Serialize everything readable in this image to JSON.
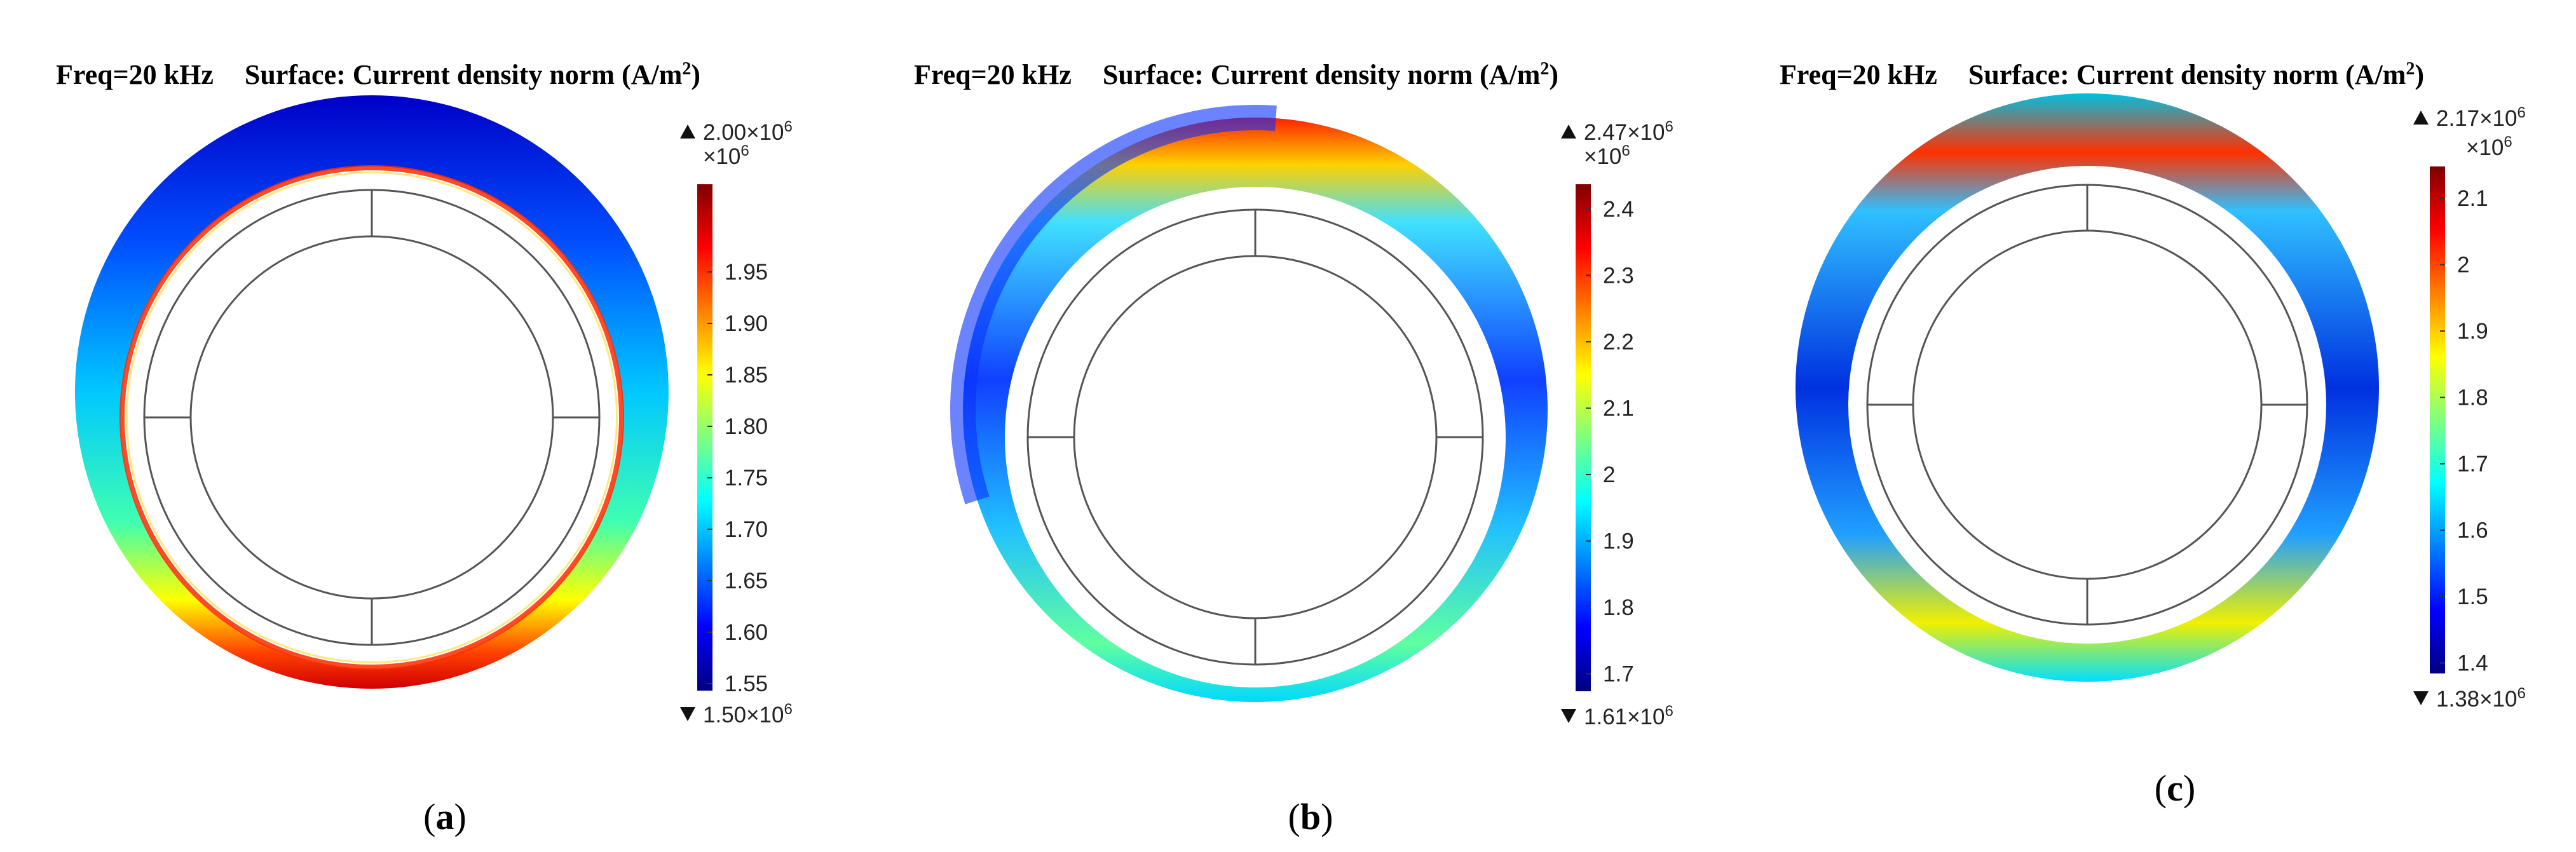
{
  "panels": [
    {
      "id": "a",
      "title_freq": "Freq=20 kHz",
      "title_surface": "Surface: Current density norm (A/m",
      "title_unit_sup": "2",
      "title_close": ")",
      "max_label": "2.00×10",
      "max_exp": "6",
      "min_label": "1.50×10",
      "min_exp": "6",
      "multiplier": "×10",
      "multiplier_exp": "6",
      "ticks": [
        "1.95",
        "1.90",
        "1.85",
        "1.80",
        "1.75",
        "1.70",
        "1.65",
        "1.60",
        "1.55"
      ],
      "caption_open": "(",
      "caption_letter": "a",
      "caption_close": ")"
    },
    {
      "id": "b",
      "title_freq": "Freq=20 kHz",
      "title_surface": "Surface: Current density norm (A/m",
      "title_unit_sup": "2",
      "title_close": ")",
      "max_label": "2.47×10",
      "max_exp": "6",
      "min_label": "1.61×10",
      "min_exp": "6",
      "multiplier": "×10",
      "multiplier_exp": "6",
      "ticks": [
        "2.4",
        "2.3",
        "2.2",
        "2.1",
        "2",
        "1.9",
        "1.8",
        "1.7"
      ],
      "caption_open": "(",
      "caption_letter": "b",
      "caption_close": ")"
    },
    {
      "id": "c",
      "title_freq": "Freq=20 kHz",
      "title_surface": "Surface: Current density norm (A/m",
      "title_unit_sup": "2",
      "title_close": ")",
      "max_label": "2.17×10",
      "max_exp": "6",
      "min_label": "1.38×10",
      "min_exp": "6",
      "multiplier": "×10",
      "multiplier_exp": "6",
      "ticks": [
        "2.1",
        "2",
        "1.9",
        "1.8",
        "1.7",
        "1.6",
        "1.5",
        "1.4"
      ],
      "caption_open": "(",
      "caption_letter": "c",
      "caption_close": ")"
    }
  ],
  "colormap": [
    "#00007f",
    "#0000ff",
    "#007fff",
    "#00ffff",
    "#7fff7f",
    "#ffff00",
    "#ff7f00",
    "#ff0000",
    "#7f0000"
  ]
}
